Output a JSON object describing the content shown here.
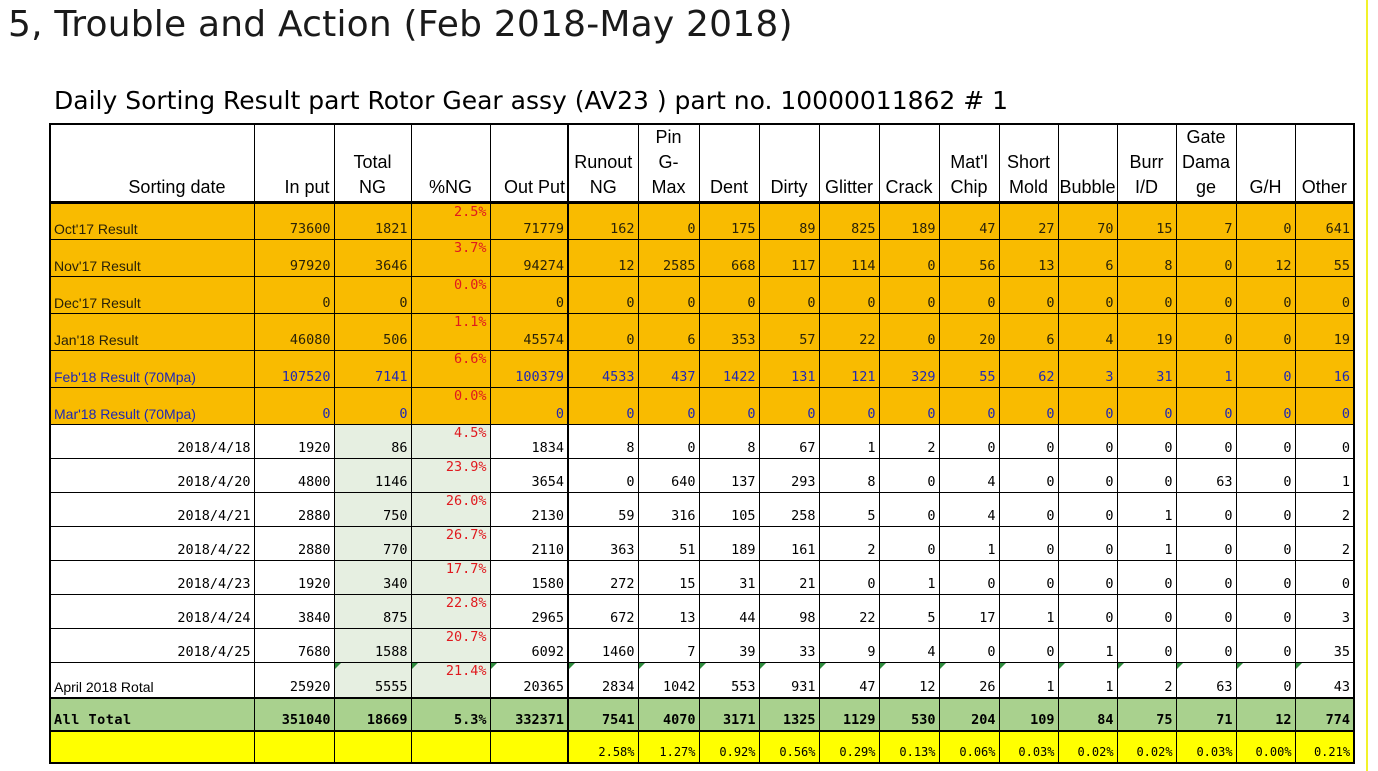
{
  "slide_title": "5, Trouble and Action (Feb 2018-May 2018)",
  "table_title": "Daily Sorting Result part Rotor Gear assy (AV23 ) part no. 10000011862 # 1",
  "columns": [
    "Sorting date",
    "In put",
    "Total NG",
    "%NG",
    "Out Put",
    "Runout NG",
    "Pin G-Max",
    "Dent",
    "Dirty",
    "Glitter",
    "Crack",
    "Mat'l Chip",
    "Short Mold",
    "Bubble",
    "Burr I/D",
    "Gate Damage",
    "G/H",
    "Other"
  ],
  "header_lines": [
    [
      "Sorting date"
    ],
    [
      "In put"
    ],
    [
      "Total",
      "NG"
    ],
    [
      "%NG"
    ],
    [
      "Out Put"
    ],
    [
      "Runout",
      "NG"
    ],
    [
      "Pin",
      "G-",
      "Max"
    ],
    [
      "Dent"
    ],
    [
      "Dirty"
    ],
    [
      "Glitter"
    ],
    [
      "Crack"
    ],
    [
      "Mat'l",
      "Chip"
    ],
    [
      "Short",
      "Mold"
    ],
    [
      "Bubble"
    ],
    [
      "Burr",
      "I/D"
    ],
    [
      "Gate",
      "Dama",
      "ge"
    ],
    [
      "G/H"
    ],
    [
      "Other"
    ]
  ],
  "monthly_rows": [
    {
      "label": "Oct'17 Result",
      "blue": false,
      "values": [
        "73600",
        "1821",
        "2.5%",
        "71779",
        "162",
        "0",
        "175",
        "89",
        "825",
        "189",
        "47",
        "27",
        "70",
        "15",
        "7",
        "0",
        "641"
      ]
    },
    {
      "label": "Nov'17 Result",
      "blue": false,
      "values": [
        "97920",
        "3646",
        "3.7%",
        "94274",
        "12",
        "2585",
        "668",
        "117",
        "114",
        "0",
        "56",
        "13",
        "6",
        "8",
        "0",
        "12",
        "55"
      ]
    },
    {
      "label": "Dec'17 Result",
      "blue": false,
      "values": [
        "0",
        "0",
        "0.0%",
        "0",
        "0",
        "0",
        "0",
        "0",
        "0",
        "0",
        "0",
        "0",
        "0",
        "0",
        "0",
        "0",
        "0"
      ]
    },
    {
      "label": "Jan'18 Result",
      "blue": false,
      "values": [
        "46080",
        "506",
        "1.1%",
        "45574",
        "0",
        "6",
        "353",
        "57",
        "22",
        "0",
        "20",
        "6",
        "4",
        "19",
        "0",
        "0",
        "19"
      ]
    },
    {
      "label": "Feb'18 Result (70Mpa)",
      "blue": true,
      "values": [
        "107520",
        "7141",
        "6.6%",
        "100379",
        "4533",
        "437",
        "1422",
        "131",
        "121",
        "329",
        "55",
        "62",
        "3",
        "31",
        "1",
        "0",
        "16"
      ]
    },
    {
      "label": "Mar'18  Result (70Mpa)",
      "blue": true,
      "values": [
        "0",
        "0",
        "0.0%",
        "0",
        "0",
        "0",
        "0",
        "0",
        "0",
        "0",
        "0",
        "0",
        "0",
        "0",
        "0",
        "0",
        "0"
      ]
    }
  ],
  "daily_rows": [
    {
      "label": "2018/4/18",
      "values": [
        "1920",
        "86",
        "4.5%",
        "1834",
        "8",
        "0",
        "8",
        "67",
        "1",
        "2",
        "0",
        "0",
        "0",
        "0",
        "0",
        "0",
        "0"
      ]
    },
    {
      "label": "2018/4/20",
      "values": [
        "4800",
        "1146",
        "23.9%",
        "3654",
        "0",
        "640",
        "137",
        "293",
        "8",
        "0",
        "4",
        "0",
        "0",
        "0",
        "63",
        "0",
        "1"
      ]
    },
    {
      "label": "2018/4/21",
      "values": [
        "2880",
        "750",
        "26.0%",
        "2130",
        "59",
        "316",
        "105",
        "258",
        "5",
        "0",
        "4",
        "0",
        "0",
        "1",
        "0",
        "0",
        "2"
      ]
    },
    {
      "label": "2018/4/22",
      "values": [
        "2880",
        "770",
        "26.7%",
        "2110",
        "363",
        "51",
        "189",
        "161",
        "2",
        "0",
        "1",
        "0",
        "0",
        "1",
        "0",
        "0",
        "2"
      ]
    },
    {
      "label": "2018/4/23",
      "values": [
        "1920",
        "340",
        "17.7%",
        "1580",
        "272",
        "15",
        "31",
        "21",
        "0",
        "1",
        "0",
        "0",
        "0",
        "0",
        "0",
        "0",
        "0"
      ]
    },
    {
      "label": "2018/4/24",
      "values": [
        "3840",
        "875",
        "22.8%",
        "2965",
        "672",
        "13",
        "44",
        "98",
        "22",
        "5",
        "17",
        "1",
        "0",
        "0",
        "0",
        "0",
        "3"
      ]
    },
    {
      "label": "2018/4/25",
      "values": [
        "7680",
        "1588",
        "20.7%",
        "6092",
        "1460",
        "7",
        "39",
        "33",
        "9",
        "4",
        "0",
        "0",
        "1",
        "0",
        "0",
        "0",
        "35"
      ]
    }
  ],
  "april_row": {
    "label": "April 2018 Rotal",
    "values": [
      "25920",
      "5555",
      "21.4%",
      "20365",
      "2834",
      "1042",
      "553",
      "931",
      "47",
      "12",
      "26",
      "1",
      "1",
      "2",
      "63",
      "0",
      "43"
    ]
  },
  "total_row": {
    "label": "All Total",
    "values": [
      "351040",
      "18669",
      "5.3%",
      "332371",
      "7541",
      "4070",
      "3171",
      "1325",
      "1129",
      "530",
      "204",
      "109",
      "84",
      "75",
      "71",
      "12",
      "774"
    ]
  },
  "percent_row": {
    "label": "",
    "values": [
      "",
      "",
      "",
      "",
      "2.58%",
      "1.27%",
      "0.92%",
      "0.56%",
      "0.29%",
      "0.13%",
      "0.06%",
      "0.03%",
      "0.02%",
      "0.02%",
      "0.03%",
      "0.00%",
      "0.21%"
    ]
  },
  "colors": {
    "monthly_fill": "#f9bb00",
    "total_fill": "#a9d18e",
    "percent_fill": "#ffff00",
    "shade_fill": "#e6efe1",
    "percent_text": "#e0191e",
    "blue_label": "#1f28b4"
  }
}
